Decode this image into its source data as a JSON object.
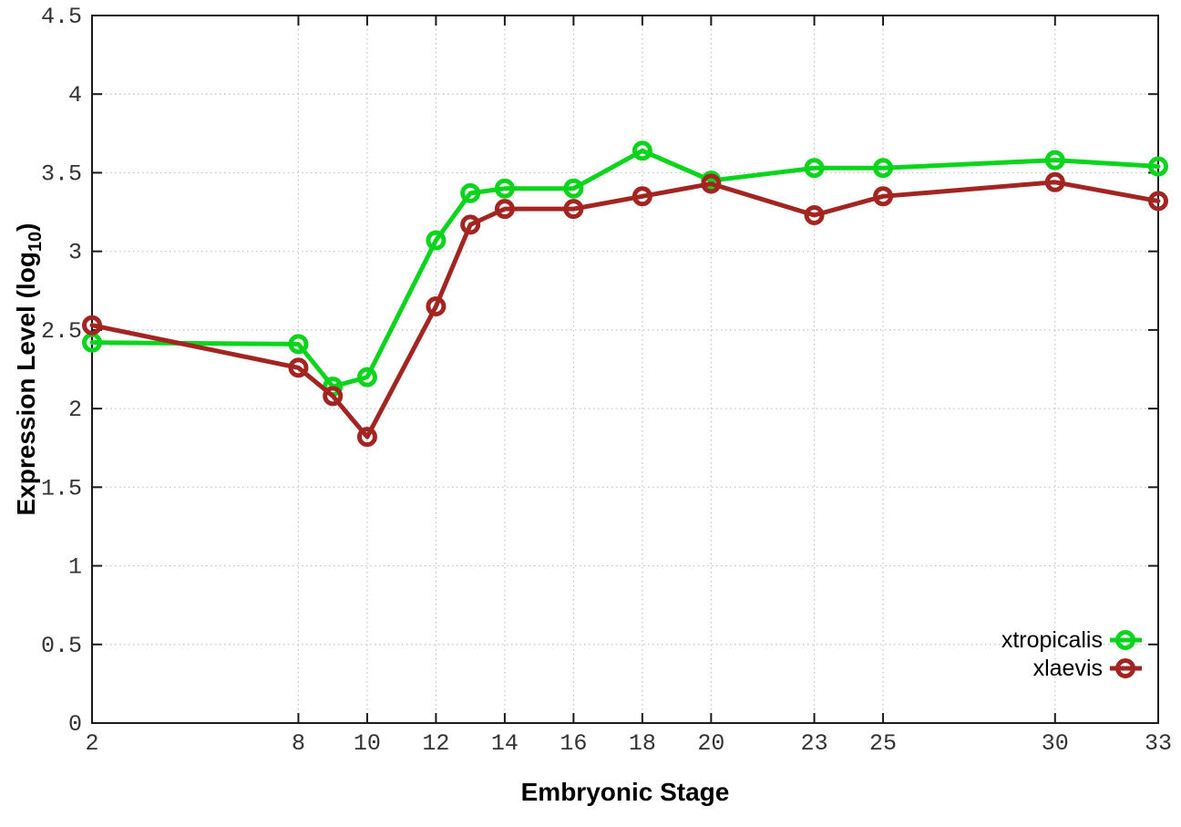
{
  "chart_data": {
    "type": "line",
    "title": "",
    "xlabel": "Embryonic Stage",
    "ylabel": "Expression Level (log10)",
    "ylabel_parts": {
      "main": "Expression Level (log",
      "sub": "10",
      "end": ")"
    },
    "x": [
      2,
      8,
      9,
      10,
      12,
      13,
      14,
      16,
      18,
      20,
      23,
      25,
      30,
      33
    ],
    "series": [
      {
        "name": "xtropicalis",
        "color": "#0bd41d",
        "values": [
          2.42,
          2.41,
          2.14,
          2.2,
          3.07,
          3.37,
          3.4,
          3.4,
          3.64,
          3.45,
          3.53,
          3.53,
          3.58,
          3.54
        ]
      },
      {
        "name": "xlaevis",
        "color": "#a32522",
        "values": [
          2.53,
          2.26,
          2.08,
          1.82,
          2.65,
          3.17,
          3.27,
          3.27,
          3.35,
          3.43,
          3.23,
          3.35,
          3.44,
          3.32
        ]
      }
    ],
    "x_ticks": [
      2,
      8,
      10,
      12,
      14,
      16,
      18,
      20,
      23,
      25,
      30,
      33
    ],
    "x_tick_labels": [
      "2",
      "8",
      "10",
      "12",
      "14",
      "16",
      "18",
      "20",
      "23",
      "25",
      "30",
      "33"
    ],
    "y_ticks": [
      0,
      0.5,
      1,
      1.5,
      2,
      2.5,
      3,
      3.5,
      4,
      4.5
    ],
    "y_tick_labels": [
      "0",
      "0.5",
      "1",
      "1.5",
      "2",
      "2.5",
      "3",
      "3.5",
      "4",
      "4.5"
    ],
    "xlim": [
      2,
      33
    ],
    "ylim": [
      0,
      4.5
    ],
    "grid": true,
    "legend_position": "bottom-right",
    "marker": "open-circle"
  },
  "colors": {
    "background": "#ffffff",
    "grid": "#c2c2c2",
    "axis": "#1a1a1a",
    "tick_label": "#333333",
    "green_series": "#0bd41d",
    "red_series": "#a32522"
  }
}
